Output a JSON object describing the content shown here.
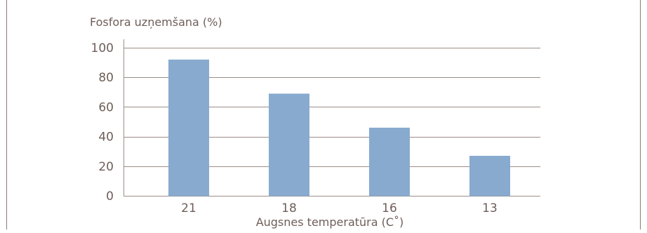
{
  "chart_data": {
    "type": "bar",
    "ylabel": "Fosfora uzņemšana (%)",
    "xlabel": "Augsnes temperatūra (C˚)",
    "categories": [
      "21",
      "18",
      "16",
      "13"
    ],
    "values": [
      92,
      69,
      46,
      27
    ],
    "ylim": [
      0,
      100
    ],
    "yticks": [
      "100",
      "80",
      "60",
      "40",
      "20",
      "0"
    ],
    "grid": true,
    "legend": "none"
  },
  "colors": {
    "bar": "#88aacf",
    "grid": "#9b8e87",
    "text": "#6e5e58",
    "frame": "#8a7b73"
  }
}
